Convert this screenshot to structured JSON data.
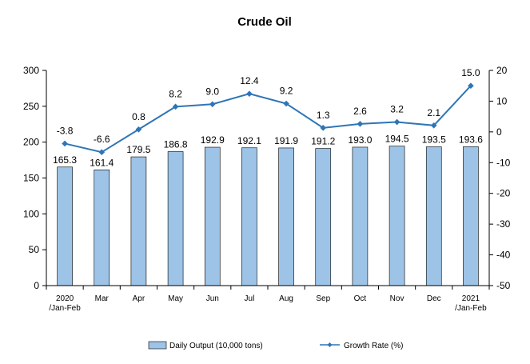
{
  "chart_data": {
    "type": "bar",
    "title": "Crude Oil",
    "categories": [
      [
        "2020",
        "/Jan-Feb"
      ],
      [
        "Mar"
      ],
      [
        "Apr"
      ],
      [
        "May"
      ],
      [
        "Jun"
      ],
      [
        "Jul"
      ],
      [
        "Aug"
      ],
      [
        "Sep"
      ],
      [
        "Oct"
      ],
      [
        "Nov"
      ],
      [
        "Dec"
      ],
      [
        "2021",
        "/Jan-Feb"
      ]
    ],
    "series": [
      {
        "name": "Daily Output (10,000 tons)",
        "type": "bar",
        "axis": "left",
        "color": "#9DC3E6",
        "values": [
          165.3,
          161.4,
          179.5,
          186.8,
          192.9,
          192.1,
          191.9,
          191.2,
          193.0,
          194.5,
          193.5,
          193.6
        ],
        "labels": [
          "165.3",
          "161.4",
          "179.5",
          "186.8",
          "192.9",
          "192.1",
          "191.9",
          "191.2",
          "193.0",
          "194.5",
          "193.5",
          "193.6"
        ]
      },
      {
        "name": "Growth Rate (%)",
        "type": "line",
        "axis": "right",
        "color": "#2E75B6",
        "values": [
          -3.8,
          -6.6,
          0.8,
          8.2,
          9.0,
          12.4,
          9.2,
          1.3,
          2.6,
          3.2,
          2.1,
          15.0
        ],
        "labels": [
          "-3.8",
          "-6.6",
          "0.8",
          "8.2",
          "9.0",
          "12.4",
          "9.2",
          "1.3",
          "2.6",
          "3.2",
          "2.1",
          "15.0"
        ]
      }
    ],
    "y_left": {
      "range": [
        0,
        300
      ],
      "ticks": [
        0,
        50,
        100,
        150,
        200,
        250,
        300
      ]
    },
    "y_right": {
      "range": [
        -50,
        20
      ],
      "ticks": [
        -50,
        -40,
        -30,
        -20,
        -10,
        0,
        10,
        20
      ]
    },
    "grid": false,
    "legend": "bottom"
  }
}
